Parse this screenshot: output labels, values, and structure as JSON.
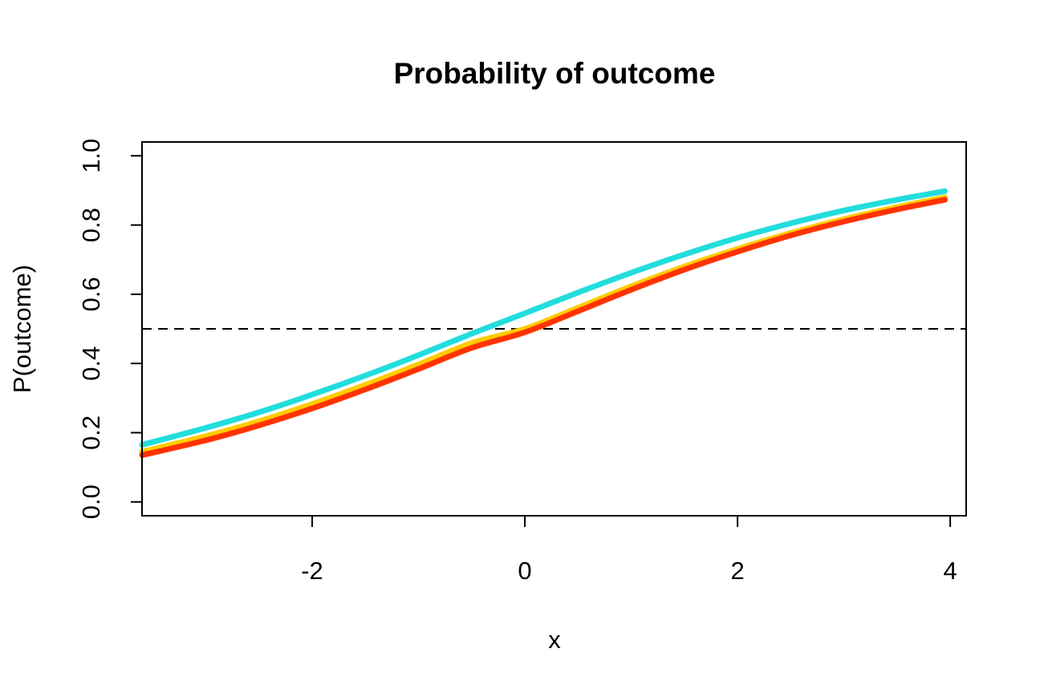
{
  "chart_data": {
    "type": "line",
    "title": "Probability of outcome",
    "xlabel": "x",
    "ylabel": "P(outcome)",
    "xlim": [
      -3.6,
      4.15
    ],
    "ylim": [
      -0.04,
      1.04
    ],
    "x_ticks": [
      "-2",
      "0",
      "2",
      "4"
    ],
    "x_tick_values": [
      -2,
      0,
      2,
      4
    ],
    "y_ticks": [
      "0.0",
      "0.2",
      "0.4",
      "0.6",
      "0.8",
      "1.0"
    ],
    "y_tick_values": [
      0,
      0.2,
      0.4,
      0.6,
      0.8,
      1.0
    ],
    "grid": false,
    "legend": "none",
    "reference_line": {
      "y": 0.5,
      "style": "dashed",
      "color": "#000000"
    },
    "series": [
      {
        "color": "#ffcc00",
        "x": [
          -3.6,
          -3,
          -2.5,
          -2,
          -1.5,
          -1,
          -0.5,
          0,
          0.5,
          1,
          1.5,
          2,
          2.5,
          3,
          3.5,
          3.95
        ],
        "y": [
          0.145,
          0.19,
          0.233,
          0.283,
          0.338,
          0.397,
          0.459,
          0.5,
          0.561,
          0.623,
          0.68,
          0.731,
          0.777,
          0.817,
          0.852,
          0.88
        ]
      },
      {
        "color": "#ff3300",
        "x": [
          -3.6,
          -3,
          -2.5,
          -2,
          -1.5,
          -1,
          -0.5,
          0,
          0.5,
          1,
          1.5,
          2,
          2.5,
          3,
          3.5,
          3.95
        ],
        "y": [
          0.135,
          0.178,
          0.221,
          0.27,
          0.325,
          0.384,
          0.445,
          0.49,
          0.551,
          0.613,
          0.671,
          0.723,
          0.77,
          0.81,
          0.845,
          0.873
        ]
      },
      {
        "color": "#22dddd",
        "x": [
          -3.6,
          -3,
          -2.5,
          -2,
          -1.5,
          -1,
          -0.5,
          0,
          0.5,
          1,
          1.5,
          2,
          2.5,
          3,
          3.5,
          3.95
        ],
        "y": [
          0.165,
          0.214,
          0.259,
          0.31,
          0.365,
          0.424,
          0.486,
          0.545,
          0.605,
          0.662,
          0.715,
          0.763,
          0.805,
          0.842,
          0.873,
          0.898
        ]
      }
    ]
  }
}
